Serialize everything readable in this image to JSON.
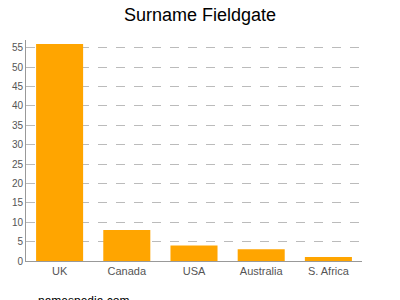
{
  "chart_data": {
    "type": "bar",
    "title": "Surname Fieldgate",
    "categories": [
      "UK",
      "Canada",
      "USA",
      "Australia",
      "S. Africa"
    ],
    "values": [
      56,
      8,
      4,
      3,
      1
    ],
    "color": "#ffa500",
    "ylim": [
      0,
      57
    ],
    "yticks": [
      0,
      5,
      10,
      15,
      20,
      25,
      30,
      35,
      40,
      45,
      50,
      55
    ],
    "grid": true,
    "annotations": [
      "namespedia.com"
    ]
  }
}
